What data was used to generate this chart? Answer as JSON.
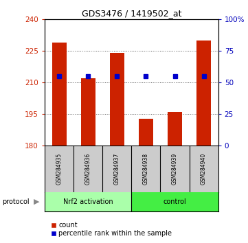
{
  "title": "GDS3476 / 1419502_at",
  "samples": [
    "GSM284935",
    "GSM284936",
    "GSM284937",
    "GSM284938",
    "GSM284939",
    "GSM284940"
  ],
  "counts": [
    229,
    212,
    224,
    193,
    196,
    230
  ],
  "percentile_ranks": [
    213,
    213,
    213,
    213,
    213,
    213
  ],
  "bar_color": "#cc2200",
  "dot_color": "#0000cc",
  "left_ylim": [
    180,
    240
  ],
  "left_yticks": [
    180,
    195,
    210,
    225,
    240
  ],
  "right_ylim": [
    0,
    100
  ],
  "right_yticks": [
    0,
    25,
    50,
    75,
    100
  ],
  "right_yticklabels": [
    "0",
    "25",
    "50",
    "75",
    "100%"
  ],
  "left_ycolor": "#cc2200",
  "right_ycolor": "#0000bb",
  "groups": [
    {
      "label": "Nrf2 activation",
      "indices": [
        0,
        1,
        2
      ],
      "color": "#aaffaa"
    },
    {
      "label": "control",
      "indices": [
        3,
        4,
        5
      ],
      "color": "#44ee44"
    }
  ],
  "protocol_label": "protocol",
  "legend_count_label": "count",
  "legend_pct_label": "percentile rank within the sample",
  "bar_bottom": 180,
  "sample_label_bg": "#cccccc",
  "fig_bg": "#ffffff"
}
